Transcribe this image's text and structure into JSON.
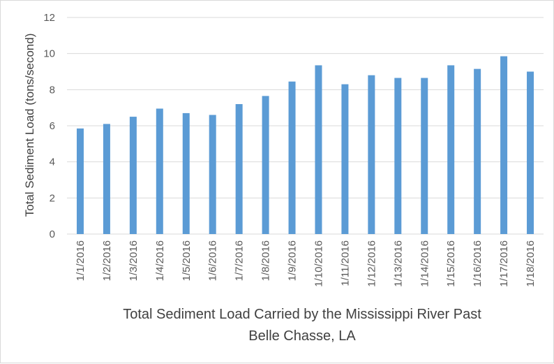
{
  "chart_data": {
    "type": "bar",
    "title": "Total Sediment Load Carried by the Mississippi River Past Belle Chasse, LA",
    "title_lines": [
      "Total Sediment Load Carried by the Mississippi River Past",
      "Belle Chasse, LA"
    ],
    "xlabel": "",
    "ylabel": "Total Sediment Load (tons/second)",
    "categories": [
      "1/1/2016",
      "1/2/2016",
      "1/3/2016",
      "1/4/2016",
      "1/5/2016",
      "1/6/2016",
      "1/7/2016",
      "1/8/2016",
      "1/9/2016",
      "1/10/2016",
      "1/11/2016",
      "1/12/2016",
      "1/13/2016",
      "1/14/2016",
      "1/15/2016",
      "1/16/2016",
      "1/17/2016",
      "1/18/2016"
    ],
    "values": [
      5.85,
      6.1,
      6.5,
      6.95,
      6.7,
      6.6,
      7.2,
      7.65,
      8.45,
      9.35,
      8.3,
      8.8,
      8.65,
      8.65,
      9.35,
      9.15,
      9.85,
      9.0
    ],
    "ylim": [
      0,
      12
    ],
    "yticks": [
      0,
      2,
      4,
      6,
      8,
      10,
      12
    ],
    "grid": true,
    "bar_color": "#5b9bd5",
    "grid_color": "#d9d9d9"
  }
}
